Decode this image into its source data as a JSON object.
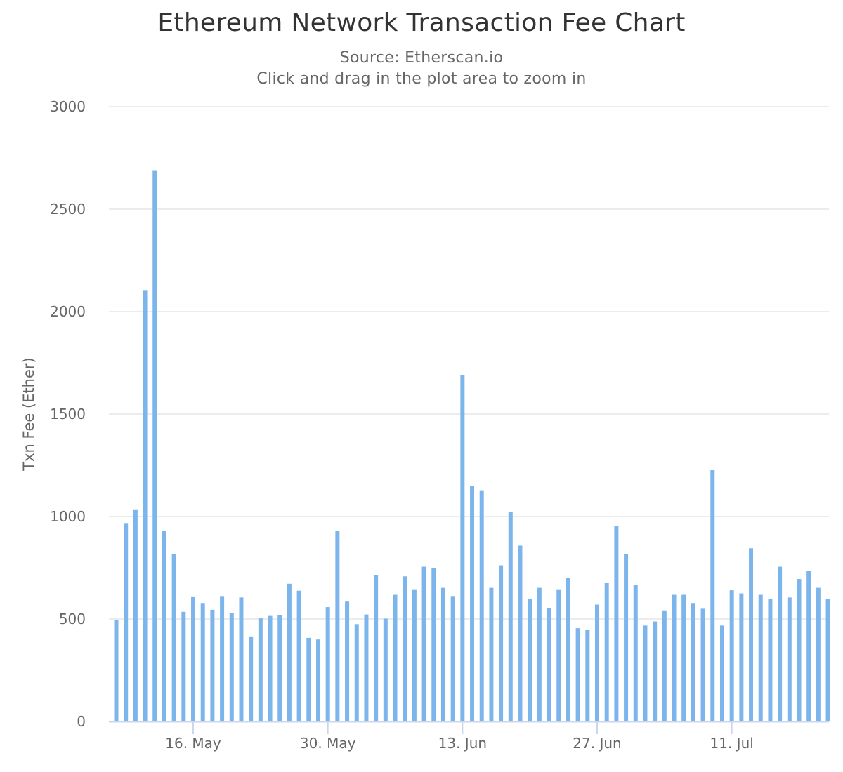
{
  "chart_data": {
    "type": "bar",
    "title": "Ethereum Network Transaction Fee Chart",
    "subtitle": "Source: Etherscan.io",
    "subtitle_hint": "Click and drag in the plot area to zoom in",
    "xlabel": "",
    "ylabel": "Txn Fee (Ether)",
    "ylim": [
      0,
      3000
    ],
    "yticks": [
      0,
      500,
      1000,
      1500,
      2000,
      2500,
      3000
    ],
    "x_start": "2017-05-08",
    "xticks": [
      {
        "date": "2017-05-16",
        "label": "16. May"
      },
      {
        "date": "2017-05-30",
        "label": "30. May"
      },
      {
        "date": "2017-06-13",
        "label": "13. Jun"
      },
      {
        "date": "2017-06-27",
        "label": "27. Jun"
      },
      {
        "date": "2017-07-11",
        "label": "11. Jul"
      }
    ],
    "grid": true,
    "legend": "none",
    "bar_color": "#7cb5ec",
    "series": [
      {
        "values": [
          495,
          968,
          1035,
          2105,
          2690,
          928,
          818,
          535,
          610,
          578,
          545,
          612,
          530,
          605,
          415,
          503,
          515,
          520,
          672,
          638,
          408,
          400,
          558,
          928,
          585,
          475,
          522,
          713,
          502,
          618,
          708,
          645,
          755,
          748,
          652,
          612,
          1690,
          1148,
          1128,
          652,
          762,
          1022,
          858,
          598,
          652,
          552,
          645,
          700,
          455,
          448,
          570,
          678,
          955,
          818,
          665,
          468,
          488,
          542,
          618,
          618,
          578,
          550,
          1228,
          468,
          640,
          625,
          845,
          618,
          598,
          755,
          605,
          695,
          735,
          652,
          598
        ]
      }
    ]
  }
}
